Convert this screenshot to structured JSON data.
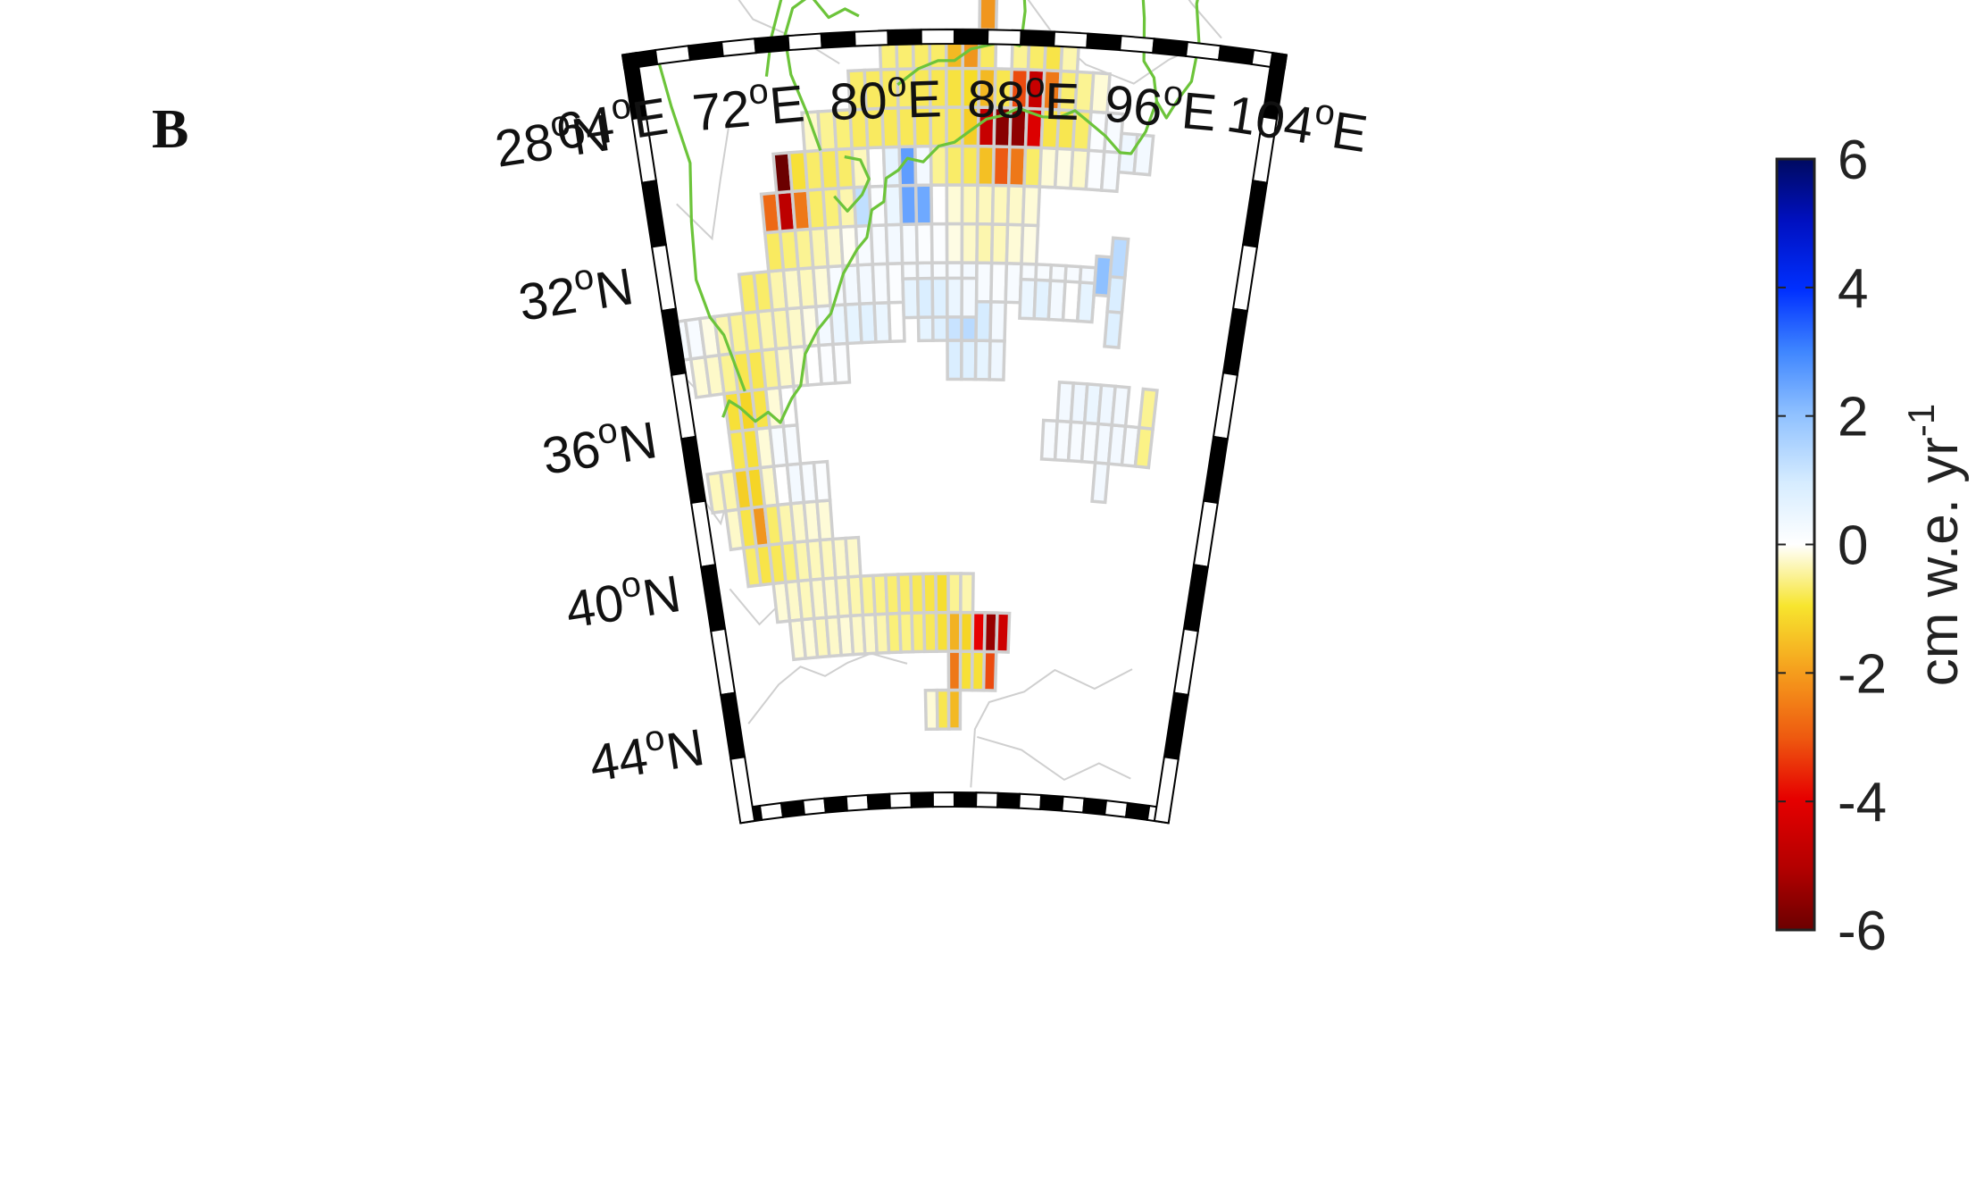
{
  "panel_label": "B",
  "latitude_labels": [
    {
      "deg": "44",
      "sup": "o",
      "hemi": "N"
    },
    {
      "deg": "40",
      "sup": "o",
      "hemi": "N"
    },
    {
      "deg": "36",
      "sup": "o",
      "hemi": "N"
    },
    {
      "deg": "32",
      "sup": "o",
      "hemi": "N"
    },
    {
      "deg": "28",
      "sup": "o",
      "hemi": "N"
    }
  ],
  "longitude_labels": [
    {
      "deg": "64",
      "sup": "o",
      "hemi": "E"
    },
    {
      "deg": "72",
      "sup": "o",
      "hemi": "E"
    },
    {
      "deg": "80",
      "sup": "o",
      "hemi": "E"
    },
    {
      "deg": "88",
      "sup": "o",
      "hemi": "E"
    },
    {
      "deg": "96",
      "sup": "o",
      "hemi": "E"
    },
    {
      "deg": "104",
      "sup": "o",
      "hemi": "E"
    }
  ],
  "colorbar": {
    "ticks": [
      "6",
      "4",
      "2",
      "0",
      "-2",
      "-4",
      "-6"
    ],
    "unit_main": "cm w.e. yr",
    "unit_exp": "-1",
    "range": [
      -6,
      6
    ]
  },
  "colors": {
    "grid_stroke": "#cfcfcf",
    "border_green": "#6cc43a",
    "frame": "#000000"
  },
  "map_data": {
    "projection": "conic",
    "lon_range": [
      64,
      104
    ],
    "lat_range": [
      26,
      46
    ],
    "cell_deg": 1,
    "cells": [
      [
        82,
        43.5,
        -0.3
      ],
      [
        83,
        43.5,
        -1.5
      ],
      [
        84,
        43.5,
        -2.5
      ],
      [
        84,
        42.5,
        -3.2
      ],
      [
        85,
        42.5,
        -1.8
      ],
      [
        86,
        42.5,
        -1.8
      ],
      [
        87,
        42.5,
        -3.5
      ],
      [
        71,
        41.5,
        -0.3
      ],
      [
        72,
        41.5,
        -0.3
      ],
      [
        73,
        41.5,
        -0.5
      ],
      [
        74,
        41.5,
        -0.4
      ],
      [
        75,
        41.5,
        -0.3
      ],
      [
        76,
        41.5,
        -0.4
      ],
      [
        77,
        41.5,
        -0.4
      ],
      [
        78,
        41.5,
        -0.6
      ],
      [
        79,
        41.5,
        -1.0
      ],
      [
        80,
        41.5,
        -0.9
      ],
      [
        81,
        41.5,
        -1.1
      ],
      [
        82,
        41.5,
        -1.4
      ],
      [
        83,
        41.5,
        -1.8
      ],
      [
        84,
        41.5,
        -2.6
      ],
      [
        85,
        41.5,
        -2.1
      ],
      [
        86,
        41.5,
        -4.0
      ],
      [
        87,
        41.5,
        -5.4
      ],
      [
        88,
        41.5,
        -4.5
      ],
      [
        70,
        40.5,
        -0.3
      ],
      [
        71,
        40.5,
        -0.4
      ],
      [
        72,
        40.5,
        -0.5
      ],
      [
        73,
        40.5,
        -0.4
      ],
      [
        74,
        40.5,
        -0.4
      ],
      [
        75,
        40.5,
        -0.5
      ],
      [
        76,
        40.5,
        -0.6
      ],
      [
        77,
        40.5,
        -0.8
      ],
      [
        78,
        40.5,
        -0.9
      ],
      [
        79,
        40.5,
        -1.1
      ],
      [
        80,
        40.5,
        -1.2
      ],
      [
        81,
        40.5,
        -1.4
      ],
      [
        82,
        40.5,
        -1.6
      ],
      [
        83,
        40.5,
        -1.9
      ],
      [
        84,
        40.5,
        -0.8
      ],
      [
        85,
        40.5,
        -0.6
      ],
      [
        68,
        39.5,
        -1.2
      ],
      [
        69,
        39.5,
        -1.6
      ],
      [
        70,
        39.5,
        -1.4
      ],
      [
        71,
        39.5,
        -1.0
      ],
      [
        72,
        39.5,
        -0.6
      ],
      [
        73,
        39.5,
        -0.5
      ],
      [
        74,
        39.5,
        -0.5
      ],
      [
        75,
        39.5,
        -0.4
      ],
      [
        76,
        39.5,
        -0.4
      ],
      [
        67,
        38.5,
        -0.4
      ],
      [
        68,
        38.5,
        -1.6
      ],
      [
        69,
        38.5,
        -3.0
      ],
      [
        70,
        38.5,
        -1.2
      ],
      [
        71,
        38.5,
        -0.6
      ],
      [
        72,
        38.5,
        -0.4
      ],
      [
        73,
        38.5,
        -0.3
      ],
      [
        74,
        38.5,
        -0.3
      ],
      [
        66,
        37.5,
        -0.5
      ],
      [
        67,
        37.5,
        -0.6
      ],
      [
        68,
        37.5,
        -2.2
      ],
      [
        69,
        37.5,
        -2.1
      ],
      [
        70,
        37.5,
        -0.4
      ],
      [
        71,
        37.5,
        0.0
      ],
      [
        72,
        37.5,
        0.3
      ],
      [
        73,
        37.5,
        0.2
      ],
      [
        74,
        37.5,
        0.1
      ],
      [
        68,
        36.5,
        -1.5
      ],
      [
        69,
        36.5,
        -1.8
      ],
      [
        70,
        36.5,
        -0.3
      ],
      [
        71,
        36.5,
        0.2
      ],
      [
        72,
        36.5,
        0.2
      ],
      [
        68,
        35.5,
        -1.8
      ],
      [
        69,
        35.5,
        -2.1
      ],
      [
        70,
        35.5,
        -1.6
      ],
      [
        71,
        35.5,
        -0.3
      ],
      [
        72,
        35.5,
        0.0
      ],
      [
        66,
        34.5,
        -0.3
      ],
      [
        67,
        34.5,
        -0.4
      ],
      [
        68,
        34.5,
        -0.8
      ],
      [
        69,
        34.5,
        -1.5
      ],
      [
        70,
        34.5,
        -1.5
      ],
      [
        71,
        34.5,
        -0.8
      ],
      [
        72,
        34.5,
        -0.4
      ],
      [
        73,
        34.5,
        -0.2
      ],
      [
        74,
        34.5,
        0.0
      ],
      [
        75,
        34.5,
        0.1
      ],
      [
        76,
        34.5,
        0.1
      ],
      [
        65,
        33.5,
        0.2
      ],
      [
        66,
        33.5,
        0.2
      ],
      [
        67,
        33.5,
        -0.2
      ],
      [
        68,
        33.5,
        -0.6
      ],
      [
        69,
        33.5,
        -0.8
      ],
      [
        70,
        33.5,
        -0.9
      ],
      [
        71,
        33.5,
        -0.6
      ],
      [
        72,
        33.5,
        -0.6
      ],
      [
        73,
        33.5,
        -0.4
      ],
      [
        74,
        33.5,
        -0.2
      ],
      [
        75,
        33.5,
        0.3
      ],
      [
        76,
        33.5,
        0.5
      ],
      [
        77,
        33.5,
        0.6
      ],
      [
        78,
        33.5,
        0.7
      ],
      [
        79,
        33.5,
        0.5
      ],
      [
        80,
        33.5,
        0.0
      ],
      [
        70,
        32.5,
        -1.2
      ],
      [
        71,
        32.5,
        -1.2
      ],
      [
        72,
        32.5,
        -0.6
      ],
      [
        73,
        32.5,
        -0.4
      ],
      [
        74,
        32.5,
        -0.5
      ],
      [
        75,
        32.5,
        -0.3
      ],
      [
        76,
        32.5,
        0.2
      ],
      [
        77,
        32.5,
        0.3
      ],
      [
        78,
        32.5,
        0.3
      ],
      [
        79,
        32.5,
        0.2
      ],
      [
        80,
        32.5,
        0.1
      ],
      [
        81,
        32.5,
        0.2
      ],
      [
        82,
        32.5,
        0.3
      ],
      [
        83,
        32.5,
        0.2
      ],
      [
        84,
        32.5,
        0.2
      ],
      [
        85,
        32.5,
        0.3
      ],
      [
        86,
        32.5,
        0.2
      ],
      [
        87,
        32.5,
        0.1
      ],
      [
        88,
        32.5,
        0.2
      ],
      [
        89,
        32.5,
        0.2
      ],
      [
        90,
        32.5,
        0.2
      ],
      [
        91,
        32.5,
        0.2
      ],
      [
        92,
        32.5,
        0.2
      ],
      [
        93,
        32.5,
        0.3
      ],
      [
        72,
        31.5,
        -1.3
      ],
      [
        73,
        31.5,
        -1.0
      ],
      [
        74,
        31.5,
        -0.8
      ],
      [
        75,
        31.5,
        -0.6
      ],
      [
        76,
        31.5,
        -0.4
      ],
      [
        77,
        31.5,
        -0.1
      ],
      [
        78,
        31.5,
        0.2
      ],
      [
        79,
        31.5,
        0.2
      ],
      [
        80,
        31.5,
        0.3
      ],
      [
        81,
        31.5,
        0.2
      ],
      [
        82,
        31.5,
        0.1
      ],
      [
        83,
        31.5,
        0.1
      ],
      [
        84,
        31.5,
        -0.2
      ],
      [
        85,
        31.5,
        -0.4
      ],
      [
        86,
        31.5,
        -0.6
      ],
      [
        87,
        31.5,
        -0.5
      ],
      [
        88,
        31.5,
        -0.3
      ],
      [
        89,
        31.5,
        -0.2
      ],
      [
        72,
        30.5,
        -3.3
      ],
      [
        73,
        30.5,
        -4.8
      ],
      [
        74,
        30.5,
        -3.2
      ],
      [
        75,
        30.5,
        -1.2
      ],
      [
        76,
        30.5,
        -1.0
      ],
      [
        77,
        30.5,
        -0.6
      ],
      [
        78,
        30.5,
        1.3
      ],
      [
        79,
        30.5,
        0.1
      ],
      [
        80,
        30.5,
        0.5
      ],
      [
        81,
        30.5,
        2.5
      ],
      [
        82,
        30.5,
        2.4
      ],
      [
        83,
        30.5,
        0.0
      ],
      [
        84,
        30.5,
        -0.3
      ],
      [
        85,
        30.5,
        -0.5
      ],
      [
        86,
        30.5,
        -0.5
      ],
      [
        87,
        30.5,
        -0.5
      ],
      [
        88,
        30.5,
        -0.4
      ],
      [
        89,
        30.5,
        -0.3
      ],
      [
        73,
        29.5,
        -6.0
      ],
      [
        74,
        29.5,
        -1.8
      ],
      [
        75,
        29.5,
        -1.2
      ],
      [
        76,
        29.5,
        -1.4
      ],
      [
        77,
        29.5,
        -1.2
      ],
      [
        78,
        29.5,
        -0.5
      ],
      [
        79,
        29.5,
        0.0
      ],
      [
        80,
        29.5,
        0.6
      ],
      [
        81,
        29.5,
        2.6
      ],
      [
        82,
        29.5,
        0.3
      ],
      [
        83,
        29.5,
        -0.8
      ],
      [
        84,
        29.5,
        -1.2
      ],
      [
        85,
        29.5,
        -1.4
      ],
      [
        86,
        29.5,
        -2.4
      ],
      [
        87,
        29.5,
        -3.4
      ],
      [
        88,
        29.5,
        -3.2
      ],
      [
        89,
        29.5,
        -1.2
      ],
      [
        90,
        29.5,
        -1.1
      ],
      [
        91,
        29.5,
        -0.8
      ],
      [
        92,
        29.5,
        -0.4
      ],
      [
        75,
        28.5,
        -0.4
      ],
      [
        76,
        28.5,
        -0.8
      ],
      [
        77,
        28.5,
        -1.0
      ],
      [
        78,
        28.5,
        -1.3
      ],
      [
        79,
        28.5,
        -1.3
      ],
      [
        80,
        28.5,
        -1.4
      ],
      [
        81,
        28.5,
        -1.4
      ],
      [
        82,
        28.5,
        -1.5
      ],
      [
        83,
        28.5,
        -1.3
      ],
      [
        84,
        28.5,
        -1.5
      ],
      [
        85,
        28.5,
        -2.2
      ],
      [
        86,
        28.5,
        -4.6
      ],
      [
        87,
        28.5,
        -5.6
      ],
      [
        88,
        28.5,
        -5.5
      ],
      [
        89,
        28.5,
        -4.2
      ],
      [
        90,
        28.5,
        -1.6
      ],
      [
        91,
        28.5,
        -1.5
      ],
      [
        92,
        28.5,
        -1.2
      ],
      [
        93,
        28.5,
        0.1
      ],
      [
        94,
        28.5,
        0.2
      ],
      [
        78,
        27.5,
        -1.2
      ],
      [
        79,
        27.5,
        -1.3
      ],
      [
        80,
        27.5,
        -1.3
      ],
      [
        81,
        27.5,
        -1.2
      ],
      [
        82,
        27.5,
        -1.4
      ],
      [
        83,
        27.5,
        -1.5
      ],
      [
        84,
        27.5,
        -1.7
      ],
      [
        85,
        27.5,
        -2.0
      ],
      [
        86,
        27.5,
        -2.5
      ],
      [
        87,
        27.5,
        -1.5
      ],
      [
        88,
        27.5,
        -3.5
      ],
      [
        89,
        27.5,
        -4.6
      ],
      [
        90,
        27.5,
        -3.2
      ],
      [
        91,
        27.5,
        -1.1
      ],
      [
        92,
        27.5,
        -0.8
      ],
      [
        93,
        27.5,
        -0.3
      ],
      [
        80,
        26.5,
        -1.0
      ],
      [
        81,
        26.5,
        -1.1
      ],
      [
        82,
        26.5,
        -1.2
      ],
      [
        83,
        26.5,
        -1.2
      ],
      [
        84,
        26.5,
        -2.5
      ],
      [
        85,
        26.5,
        -3.0
      ],
      [
        86,
        26.5,
        -1.3
      ],
      [
        88,
        26.5,
        -0.8
      ],
      [
        89,
        26.5,
        -1.2
      ],
      [
        90,
        26.5,
        -1.6
      ],
      [
        91,
        26.5,
        -0.6
      ],
      [
        86,
        25.5,
        -3.0
      ],
      [
        95,
        37.5,
        0.3
      ],
      [
        91,
        36.5,
        0.2
      ],
      [
        92,
        36.5,
        0.2
      ],
      [
        93,
        36.5,
        0.2
      ],
      [
        94,
        36.5,
        0.2
      ],
      [
        95,
        36.5,
        0.3
      ],
      [
        96,
        36.5,
        0.3
      ],
      [
        97,
        36.5,
        0.2
      ],
      [
        98,
        36.5,
        -0.9
      ],
      [
        92,
        35.5,
        0.3
      ],
      [
        93,
        35.5,
        0.4
      ],
      [
        94,
        35.5,
        0.5
      ],
      [
        95,
        35.5,
        0.4
      ],
      [
        96,
        35.5,
        0.3
      ],
      [
        98,
        35.5,
        -0.8
      ],
      [
        84,
        34.5,
        0.9
      ],
      [
        85,
        34.5,
        0.8
      ],
      [
        86,
        34.5,
        0.6
      ],
      [
        87,
        34.5,
        0.4
      ],
      [
        82,
        33.5,
        0.6
      ],
      [
        83,
        33.5,
        0.8
      ],
      [
        84,
        33.5,
        1.2
      ],
      [
        85,
        33.5,
        1.4
      ],
      [
        86,
        33.5,
        1.0
      ],
      [
        87,
        33.5,
        0.3
      ],
      [
        95,
        33.5,
        0.8
      ],
      [
        81,
        32.9,
        0.6
      ],
      [
        82,
        32.9,
        0.9
      ],
      [
        83,
        32.9,
        0.8
      ],
      [
        84,
        32.9,
        0.5
      ],
      [
        85,
        32.9,
        0.3
      ],
      [
        89,
        32.9,
        0.5
      ],
      [
        90,
        32.9,
        0.7
      ],
      [
        91,
        32.9,
        0.3
      ],
      [
        92,
        32.9,
        0.0
      ],
      [
        93,
        32.9,
        0.6
      ],
      [
        95,
        32.6,
        0.9
      ],
      [
        94,
        32.2,
        2.0
      ],
      [
        95,
        31.7,
        1.4
      ],
      [
        90,
        29.5,
        -0.3
      ],
      [
        91,
        29.5,
        -0.2
      ],
      [
        93,
        29.5,
        0.1
      ],
      [
        94,
        29.5,
        0.2
      ],
      [
        95,
        29.0,
        0.4
      ],
      [
        96,
        29.0,
        0.3
      ]
    ]
  }
}
